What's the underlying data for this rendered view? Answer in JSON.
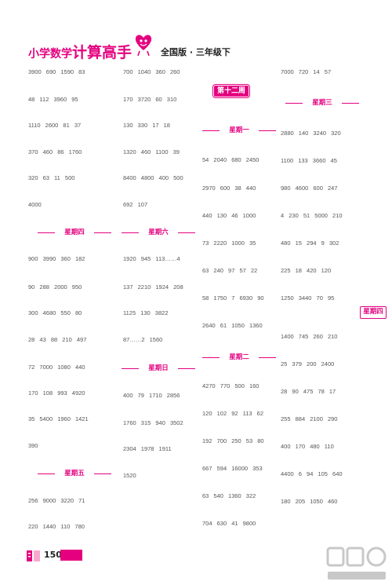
{
  "header": {
    "brand_prefix": "小学数学",
    "brand_big": "计算高手",
    "edition": "全国版 · 三年级下",
    "mascot_icon": "heart-mascot-icon"
  },
  "col1": {
    "rows_top": [
      "3900  690  1590  83",
      "48  112  3960  95",
      "1110  2600  81  37",
      "370  460  86  1760",
      "320  63  11  500",
      "4000"
    ],
    "thursday_label": "星期四",
    "rows_thursday": [
      "900  3990  360  182",
      "90  288  2000  950",
      "300  4680  550  80",
      "28  43  88  210  497",
      "72  7000  1080  440",
      "170  108  993  4920",
      "35  5400  1960  1421",
      "390"
    ],
    "friday_label": "星期五",
    "rows_friday": [
      "256  9000  3220  71",
      "220  1440  110  780"
    ]
  },
  "col2": {
    "rows_top": [
      "700  1040  360  260",
      "170  3720  60  310",
      "130  330  17  18",
      "1320  460  1100  39",
      "8400  4800  400  500",
      "692  107"
    ],
    "saturday_label": "星期六",
    "rows_saturday": [
      "1920  945  113……4",
      "137  2210  1924  208",
      "1125  130  3822",
      "87……2  1560"
    ],
    "sunday_label": "星期日",
    "rows_sunday": [
      "400  79  1710  2856",
      "1760  315  940  3502",
      "2304  1978  1911",
      "1520"
    ]
  },
  "col3": {
    "week_label": "第十二周",
    "monday_label": "星期一",
    "rows_monday": [
      "54  2040  680  2450",
      "2970  600  38  440",
      "440  130  46  1000",
      "73  2220  1000  35",
      "63  240  97  57  22",
      "58  1750  7  6930  90",
      "2640  61  1050  1360"
    ],
    "tuesday_label": "星期二",
    "rows_tuesday": [
      "4270  770  500  160",
      "120  102  92  113  62",
      "192  700  250  53  80",
      "667  594  16000  353",
      "63  540  1360  322",
      "704  630  41  9800"
    ]
  },
  "col4": {
    "rows_top": [
      "7000  720  14  57"
    ],
    "wednesday_label": "星期三",
    "rows_wednesday": [
      "2880  140  3240  320",
      "1100  133  3660  45",
      "980  4600  600  247",
      "4  230  51  5000  210",
      "480  15  294  9  302",
      "225  18  420  120",
      "1250  3440  70  95"
    ],
    "thursday_label": "星期四",
    "rows_thursday": [
      "1400  745  260  210",
      "25  379  200  2400",
      "28  90  475  78  17",
      "255  884  2100  290",
      "400  170  480  110",
      "4400  6  94  105  640",
      "180  205  1050  460"
    ]
  },
  "footer": {
    "page_number": "150",
    "watermark_icon": "mxqe-watermark-icon",
    "accent_color": "#e4007f"
  }
}
